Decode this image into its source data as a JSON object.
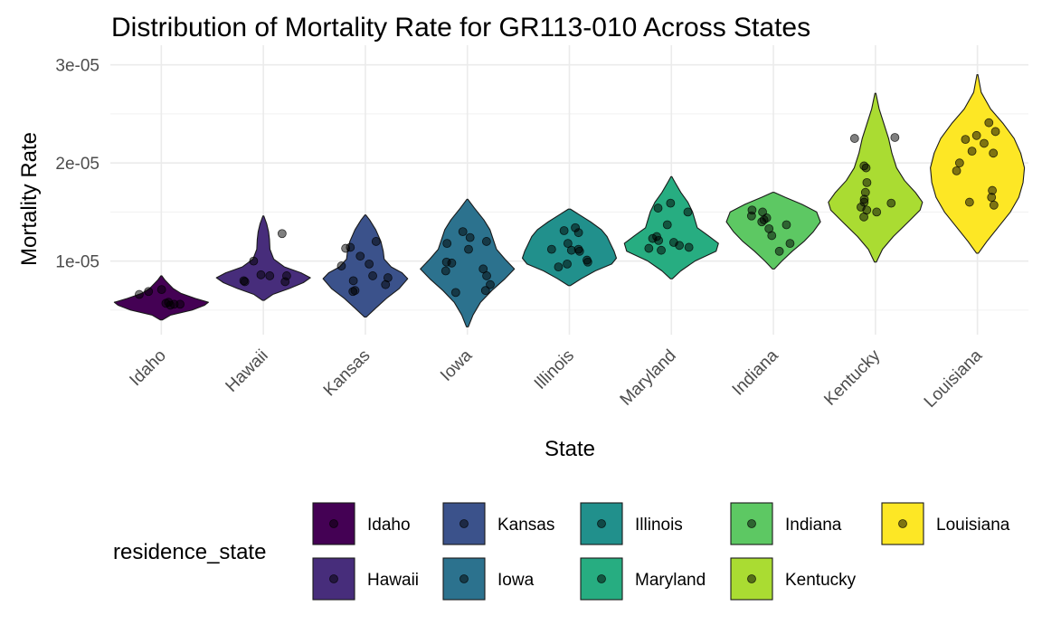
{
  "chart_data": {
    "type": "violin",
    "title": "Distribution of Mortality Rate for GR113-010 Across States",
    "xlabel": "State",
    "ylabel": "Mortality Rate",
    "ylim": [
      2.5e-06,
      3.2e-05
    ],
    "y_ticks": [
      1e-05,
      2e-05,
      3e-05
    ],
    "y_tick_labels": [
      "1e-05",
      "2e-05",
      "3e-05"
    ],
    "categories": [
      "Idaho",
      "Hawaii",
      "Kansas",
      "Iowa",
      "Illinois",
      "Maryland",
      "Indiana",
      "Kentucky",
      "Louisiana"
    ],
    "colors": {
      "Idaho": "#440154",
      "Hawaii": "#472D7B",
      "Kansas": "#3B528B",
      "Iowa": "#2C728E",
      "Illinois": "#21908C",
      "Maryland": "#27AD81",
      "Indiana": "#5DC863",
      "Kentucky": "#AADC32",
      "Louisiana": "#FDE725"
    },
    "violins": [
      {
        "state": "Idaho",
        "min": 4e-06,
        "max": 8.5e-06,
        "profile": [
          [
            4e-06,
            0.02
          ],
          [
            4.5e-06,
            0.2
          ],
          [
            5e-06,
            0.65
          ],
          [
            5.5e-06,
            0.92
          ],
          [
            5.8e-06,
            1.0
          ],
          [
            6.2e-06,
            0.72
          ],
          [
            6.7e-06,
            0.42
          ],
          [
            7.2e-06,
            0.25
          ],
          [
            7.7e-06,
            0.15
          ],
          [
            8.1e-06,
            0.07
          ],
          [
            8.5e-06,
            0.01
          ]
        ],
        "points": [
          6.6e-06,
          7.1e-06,
          5.6e-06,
          5.5e-06,
          5.6e-06,
          5.7e-06,
          6.9e-06,
          5.8e-06
        ]
      },
      {
        "state": "Hawaii",
        "min": 6e-06,
        "max": 1.46e-05,
        "profile": [
          [
            6e-06,
            0.02
          ],
          [
            6.6e-06,
            0.2
          ],
          [
            7.2e-06,
            0.55
          ],
          [
            7.8e-06,
            0.85
          ],
          [
            8.3e-06,
            1.0
          ],
          [
            8.8e-06,
            0.8
          ],
          [
            9.4e-06,
            0.45
          ],
          [
            1.02e-05,
            0.22
          ],
          [
            1.12e-05,
            0.14
          ],
          [
            1.22e-05,
            0.13
          ],
          [
            1.3e-05,
            0.11
          ],
          [
            1.38e-05,
            0.07
          ],
          [
            1.46e-05,
            0.01
          ]
        ],
        "points": [
          1.28e-05,
          1e-05,
          8.5e-06,
          8.5e-06,
          7.9e-06,
          7.9e-06,
          8e-06,
          8.6e-06
        ]
      },
      {
        "state": "Kansas",
        "min": 4.3e-06,
        "max": 1.47e-05,
        "profile": [
          [
            4.3e-06,
            0.02
          ],
          [
            5.2e-06,
            0.22
          ],
          [
            6.2e-06,
            0.45
          ],
          [
            7.2e-06,
            0.72
          ],
          [
            8.2e-06,
            0.9
          ],
          [
            8.8e-06,
            0.78
          ],
          [
            9.4e-06,
            0.55
          ],
          [
            1.02e-05,
            0.4
          ],
          [
            1.1e-05,
            0.38
          ],
          [
            1.2e-05,
            0.33
          ],
          [
            1.32e-05,
            0.22
          ],
          [
            1.42e-05,
            0.09
          ],
          [
            1.47e-05,
            0.01
          ]
        ],
        "points": [
          1.2e-05,
          1.13e-05,
          1.14e-05,
          9.7e-06,
          9.5e-06,
          8.5e-06,
          8.3e-06,
          8e-06,
          7.6e-06,
          7e-06,
          6.9e-06,
          1.05e-05
        ]
      },
      {
        "state": "Iowa",
        "min": 3.3e-06,
        "max": 1.63e-05,
        "profile": [
          [
            3.3e-06,
            0.02
          ],
          [
            4.5e-06,
            0.12
          ],
          [
            5.8e-06,
            0.28
          ],
          [
            7e-06,
            0.52
          ],
          [
            8.2e-06,
            0.8
          ],
          [
            9.2e-06,
            1.0
          ],
          [
            1.02e-05,
            0.8
          ],
          [
            1.12e-05,
            0.62
          ],
          [
            1.22e-05,
            0.55
          ],
          [
            1.32e-05,
            0.48
          ],
          [
            1.42e-05,
            0.35
          ],
          [
            1.54e-05,
            0.15
          ],
          [
            1.63e-05,
            0.01
          ]
        ],
        "points": [
          1.24e-05,
          1.2e-05,
          1.3e-05,
          1.12e-05,
          9.9e-06,
          9.8e-06,
          9.2e-06,
          9e-06,
          8.5e-06,
          7e-06,
          6.8e-06,
          7.6e-06,
          1.18e-05
        ]
      },
      {
        "state": "Illinois",
        "min": 7.5e-06,
        "max": 1.53e-05,
        "profile": [
          [
            7.5e-06,
            0.02
          ],
          [
            8.2e-06,
            0.25
          ],
          [
            9e-06,
            0.55
          ],
          [
            9.7e-06,
            0.9
          ],
          [
            1.03e-05,
            1.0
          ],
          [
            1.1e-05,
            0.95
          ],
          [
            1.17e-05,
            0.88
          ],
          [
            1.25e-05,
            0.8
          ],
          [
            1.32e-05,
            0.68
          ],
          [
            1.4e-05,
            0.45
          ],
          [
            1.47e-05,
            0.22
          ],
          [
            1.53e-05,
            0.02
          ]
        ],
        "points": [
          1.31e-05,
          1.29e-05,
          1.34e-05,
          1.18e-05,
          1.12e-05,
          1.1e-05,
          1.12e-05,
          1.01e-05,
          9.9e-06,
          9.7e-06,
          9.4e-06,
          1.11e-05
        ]
      },
      {
        "state": "Maryland",
        "min": 8.2e-06,
        "max": 1.86e-05,
        "profile": [
          [
            8.2e-06,
            0.02
          ],
          [
            9e-06,
            0.2
          ],
          [
            1e-05,
            0.5
          ],
          [
            1.1e-05,
            0.95
          ],
          [
            1.18e-05,
            1.0
          ],
          [
            1.26e-05,
            0.78
          ],
          [
            1.34e-05,
            0.55
          ],
          [
            1.42e-05,
            0.5
          ],
          [
            1.5e-05,
            0.45
          ],
          [
            1.6e-05,
            0.35
          ],
          [
            1.7e-05,
            0.2
          ],
          [
            1.8e-05,
            0.08
          ],
          [
            1.86e-05,
            0.01
          ]
        ],
        "points": [
          1.54e-05,
          1.59e-05,
          1.5e-05,
          1.37e-05,
          1.25e-05,
          1.21e-05,
          1.19e-05,
          1.16e-05,
          1.14e-05,
          1.13e-05,
          1.11e-05,
          1.23e-05
        ]
      },
      {
        "state": "Indiana",
        "min": 9.2e-06,
        "max": 1.7e-05,
        "profile": [
          [
            9.2e-06,
            0.02
          ],
          [
            1e-05,
            0.18
          ],
          [
            1.1e-05,
            0.4
          ],
          [
            1.2e-05,
            0.65
          ],
          [
            1.3e-05,
            0.85
          ],
          [
            1.4e-05,
            1.0
          ],
          [
            1.5e-05,
            0.92
          ],
          [
            1.58e-05,
            0.6
          ],
          [
            1.65e-05,
            0.25
          ],
          [
            1.7e-05,
            0.02
          ]
        ],
        "points": [
          1.52e-05,
          1.5e-05,
          1.46e-05,
          1.44e-05,
          1.4e-05,
          1.37e-05,
          1.33e-05,
          1.26e-05,
          1.18e-05,
          1.1e-05,
          1.42e-05
        ]
      },
      {
        "state": "Kentucky",
        "min": 9.9e-06,
        "max": 2.71e-05,
        "profile": [
          [
            9.9e-06,
            0.02
          ],
          [
            1.12e-05,
            0.15
          ],
          [
            1.25e-05,
            0.38
          ],
          [
            1.4e-05,
            0.7
          ],
          [
            1.52e-05,
            0.95
          ],
          [
            1.6e-05,
            1.0
          ],
          [
            1.7e-05,
            0.85
          ],
          [
            1.82e-05,
            0.62
          ],
          [
            1.95e-05,
            0.45
          ],
          [
            2.1e-05,
            0.35
          ],
          [
            2.25e-05,
            0.28
          ],
          [
            2.4e-05,
            0.18
          ],
          [
            2.55e-05,
            0.08
          ],
          [
            2.71e-05,
            0.01
          ]
        ],
        "points": [
          2.26e-05,
          2.25e-05,
          1.97e-05,
          1.95e-05,
          1.8e-05,
          1.7e-05,
          1.63e-05,
          1.6e-05,
          1.59e-05,
          1.55e-05,
          1.52e-05,
          1.45e-05,
          1.5e-05
        ]
      },
      {
        "state": "Louisiana",
        "min": 1.08e-05,
        "max": 2.9e-05,
        "profile": [
          [
            1.08e-05,
            0.02
          ],
          [
            1.2e-05,
            0.2
          ],
          [
            1.35e-05,
            0.45
          ],
          [
            1.5e-05,
            0.7
          ],
          [
            1.65e-05,
            0.88
          ],
          [
            1.8e-05,
            0.97
          ],
          [
            1.95e-05,
            1.0
          ],
          [
            2.1e-05,
            0.92
          ],
          [
            2.25e-05,
            0.78
          ],
          [
            2.4e-05,
            0.55
          ],
          [
            2.55e-05,
            0.28
          ],
          [
            2.72e-05,
            0.08
          ],
          [
            2.9e-05,
            0.01
          ]
        ],
        "points": [
          2.41e-05,
          2.32e-05,
          2.28e-05,
          2.24e-05,
          2.12e-05,
          2.1e-05,
          2e-05,
          1.92e-05,
          1.72e-05,
          1.65e-05,
          1.6e-05,
          1.57e-05,
          2.2e-05
        ]
      }
    ],
    "legend": {
      "title": "residence_state",
      "position": "bottom",
      "columns": [
        [
          "Idaho",
          "Hawaii"
        ],
        [
          "Kansas",
          "Iowa"
        ],
        [
          "Illinois",
          "Maryland"
        ],
        [
          "Indiana",
          "Kentucky"
        ],
        [
          "Louisiana"
        ]
      ]
    },
    "grid": true
  }
}
